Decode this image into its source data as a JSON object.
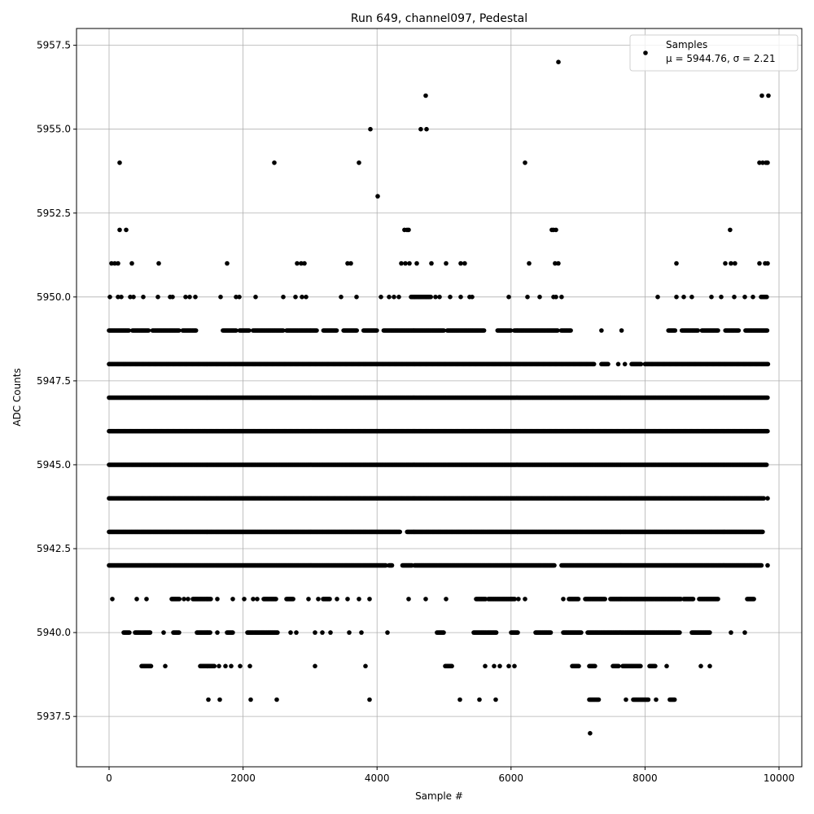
{
  "chart_data": {
    "type": "scatter",
    "title": "Run 649, channel097, Pedestal",
    "xlabel": "Sample #",
    "ylabel": "ADC Counts",
    "xlim": [
      -486,
      10340
    ],
    "ylim": [
      5936.0,
      5958.0
    ],
    "xticks": [
      0,
      2000,
      4000,
      6000,
      8000,
      10000
    ],
    "xtick_labels": [
      "0",
      "2000",
      "4000",
      "6000",
      "8000",
      "10000"
    ],
    "yticks": [
      5937.5,
      5940.0,
      5942.5,
      5945.0,
      5947.5,
      5950.0,
      5952.5,
      5955.0,
      5957.5
    ],
    "ytick_labels": [
      "5937.5",
      "5940.0",
      "5942.5",
      "5945.0",
      "5947.5",
      "5950.0",
      "5952.5",
      "5955.0",
      "5957.5"
    ],
    "grid": true,
    "legend": {
      "placement": "top-right",
      "entries": [
        "Samples",
        "μ = 5944.76, σ = 2.21"
      ]
    },
    "marker_color": "#000000",
    "series": [
      {
        "name": "Samples",
        "levels": [
          {
            "y": 5937,
            "x": [
              7180
            ]
          },
          {
            "y": 5938,
            "x": [
              1482,
              1652,
              2114,
              2503,
              3888,
              5237,
              5529,
              5772,
              [
                7169,
                7314
              ],
              7715,
              [
                7825,
                8055
              ],
              8165,
              [
                8371,
                8444
              ]
            ]
          },
          {
            "y": 5939,
            "x": [
              [
                486,
                632
              ],
              838,
              [
                1361,
                1580
              ],
              1640,
              1737,
              1823,
              1956,
              2102,
              3074,
              3827,
              [
                5018,
                5127
              ],
              5613,
              5747,
              5832,
              5966,
              6051,
              [
                6913,
                7023
              ],
              [
                7169,
                7266
              ],
              [
                7521,
                7606
              ],
              [
                7667,
                7946
              ],
              [
                8068,
                8153
              ],
              8323,
              8833,
              8967
            ]
          },
          {
            "y": 5940,
            "x": [
              [
                219,
                304
              ],
              [
                389,
                620
              ],
              814,
              [
                960,
                1057
              ],
              [
                1312,
                1519
              ],
              1616,
              [
                1762,
                1859
              ],
              [
                2066,
                2515
              ],
              2709,
              2795,
              3074,
              3183,
              3305,
              3584,
              3767,
              4155,
              [
                4896,
                4994
              ],
              [
                5443,
                5783
              ],
              [
                6002,
                6111
              ],
              [
                6367,
                6597
              ],
              [
                6780,
                7059
              ],
              [
                7144,
                8517
              ],
              [
                8700,
                8979
              ],
              9283,
              9489
            ]
          },
          {
            "y": 5941,
            "x": [
              49,
              413,
              559,
              [
                936,
                1057
              ],
              1118,
              1179,
              [
                1251,
                1519
              ],
              1616,
              1847,
              2017,
              2151,
              2211,
              [
                2309,
                2491
              ],
              [
                2649,
                2758
              ],
              2977,
              3123,
              [
                3195,
                3305
              ],
              3402,
              3560,
              3730,
              3888,
              4471,
              4726,
              5030,
              [
                5480,
                5625
              ],
              [
                5662,
                6063
              ],
              6111,
              6209,
              6780,
              [
                6865,
                7011
              ],
              [
                7108,
                7412
              ],
              [
                7484,
                8541
              ],
              [
                8578,
                8724
              ],
              [
                8809,
                9100
              ],
              [
                9526,
                9635
              ]
            ]
          },
          {
            "y": 5942,
            "x": [
              [
                0,
                4131
              ],
              [
                4180,
                4230
              ],
              [
                4380,
                4530
              ],
              [
                4560,
                6658
              ],
              [
                6755,
                9750
              ],
              9830
            ]
          },
          {
            "y": 5943,
            "x": [
              [
                0,
                4350
              ],
              [
                4450,
                9760
              ]
            ]
          },
          {
            "y": 5944,
            "x": [
              [
                0,
                9780
              ],
              9830
            ]
          },
          {
            "y": 5945,
            "x": [
              [
                0,
                9820
              ]
            ]
          },
          {
            "y": 5946,
            "x": [
              [
                0,
                9830
              ]
            ]
          },
          {
            "y": 5947,
            "x": [
              [
                0,
                9830
              ]
            ]
          },
          {
            "y": 5948,
            "x": [
              [
                0,
                7250
              ],
              [
                7350,
                7450
              ],
              7600,
              7700,
              [
                7800,
                7950
              ],
              [
                8000,
                9840
              ]
            ]
          },
          {
            "y": 5949,
            "x": [
              [
                0,
                300
              ],
              [
                350,
                600
              ],
              [
                650,
                1050
              ],
              [
                1100,
                1300
              ],
              [
                1700,
                1900
              ],
              [
                1950,
                2100
              ],
              [
                2150,
                2600
              ],
              [
                2650,
                3100
              ],
              [
                3200,
                3400
              ],
              [
                3500,
                3700
              ],
              [
                3800,
                4000
              ],
              [
                4100,
                5000
              ],
              [
                5050,
                5600
              ],
              [
                5800,
                6000
              ],
              [
                6050,
                6700
              ],
              [
                6750,
                6900
              ],
              7350,
              7650,
              [
                8350,
                8450
              ],
              [
                8550,
                8800
              ],
              [
                8850,
                9100
              ],
              [
                9200,
                9400
              ],
              [
                9500,
                9830
              ]
            ]
          },
          {
            "y": 5950,
            "x": [
              12,
              134,
              182,
              316,
              365,
              510,
              729,
              911,
              948,
              1142,
              1203,
              1288,
              1665,
              1895,
              1944,
              2187,
              2600,
              2782,
              2880,
              2940,
              3463,
              3694,
              4058,
              4180,
              4253,
              4325,
              [
                4508,
                4811
              ],
              4872,
              4933,
              5091,
              5249,
              5382,
              5419,
              5966,
              6245,
              6427,
              6634,
              6670,
              6755,
              8189,
              8469,
              8578,
              8699,
              8991,
              9137,
              9331,
              9489,
              9611,
              [
                9732,
                9817
              ]
            ]
          },
          {
            "y": 5951,
            "x": [
              36,
              85,
              134,
              340,
              741,
              1762,
              2807,
              2868,
              2916,
              3560,
              3609,
              4362,
              4423,
              4484,
              4593,
              4811,
              5030,
              5249,
              5309,
              6270,
              6657,
              6706,
              8469,
              9198,
              9283,
              9343,
              9708,
              9793,
              9830
            ]
          },
          {
            "y": 5952,
            "x": [
              158,
              255,
              4410,
              4447,
              4471,
              6609,
              6634,
              6670,
              9270
            ]
          },
          {
            "y": 5953,
            "x": [
              4010
            ]
          },
          {
            "y": 5954,
            "x": [
              158,
              2466,
              3730,
              6209,
              9708,
              9757,
              9805,
              9830
            ]
          },
          {
            "y": 5955,
            "x": [
              3900,
              4653,
              4739
            ]
          },
          {
            "y": 5956,
            "x": [
              4726,
              9745,
              9842
            ]
          },
          {
            "y": 5957,
            "x": [
              6707
            ]
          }
        ]
      }
    ]
  }
}
